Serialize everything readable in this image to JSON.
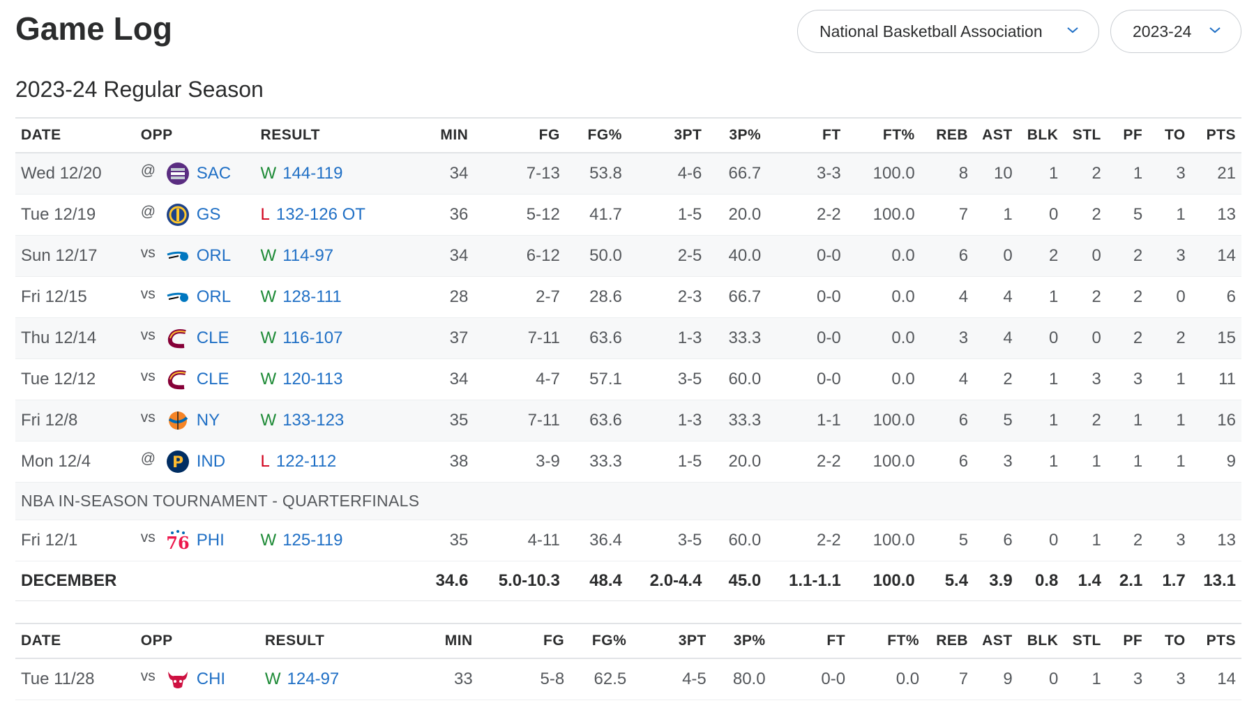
{
  "header": {
    "title": "Game Log",
    "league_select": "National Basketball Association",
    "season_select": "2023-24"
  },
  "section_title": "2023-24 Regular Season",
  "columns": [
    "DATE",
    "OPP",
    "RESULT",
    "MIN",
    "FG",
    "FG%",
    "3PT",
    "3P%",
    "FT",
    "FT%",
    "REB",
    "AST",
    "BLK",
    "STL",
    "PF",
    "TO",
    "PTS"
  ],
  "colors": {
    "win": "#1d8a36",
    "loss": "#d0001b",
    "link": "#1f6fc5"
  },
  "december": {
    "games_a": [
      {
        "date": "Wed 12/20",
        "ha": "@",
        "team": "SAC",
        "logo": "kings-logo-icon",
        "wl": "W",
        "score": "144-119",
        "min": "34",
        "fg": "7-13",
        "fgp": "53.8",
        "tpt": "4-6",
        "tpp": "66.7",
        "ft": "3-3",
        "ftp": "100.0",
        "reb": "8",
        "ast": "10",
        "blk": "1",
        "stl": "2",
        "pf": "1",
        "to": "3",
        "pts": "21"
      },
      {
        "date": "Tue 12/19",
        "ha": "@",
        "team": "GS",
        "logo": "warriors-logo-icon",
        "wl": "L",
        "score": "132-126 OT",
        "min": "36",
        "fg": "5-12",
        "fgp": "41.7",
        "tpt": "1-5",
        "tpp": "20.0",
        "ft": "2-2",
        "ftp": "100.0",
        "reb": "7",
        "ast": "1",
        "blk": "0",
        "stl": "2",
        "pf": "5",
        "to": "1",
        "pts": "13"
      },
      {
        "date": "Sun 12/17",
        "ha": "vs",
        "team": "ORL",
        "logo": "magic-logo-icon",
        "wl": "W",
        "score": "114-97",
        "min": "34",
        "fg": "6-12",
        "fgp": "50.0",
        "tpt": "2-5",
        "tpp": "40.0",
        "ft": "0-0",
        "ftp": "0.0",
        "reb": "6",
        "ast": "0",
        "blk": "2",
        "stl": "0",
        "pf": "2",
        "to": "3",
        "pts": "14"
      },
      {
        "date": "Fri 12/15",
        "ha": "vs",
        "team": "ORL",
        "logo": "magic-logo-icon",
        "wl": "W",
        "score": "128-111",
        "min": "28",
        "fg": "2-7",
        "fgp": "28.6",
        "tpt": "2-3",
        "tpp": "66.7",
        "ft": "0-0",
        "ftp": "0.0",
        "reb": "4",
        "ast": "4",
        "blk": "1",
        "stl": "2",
        "pf": "2",
        "to": "0",
        "pts": "6"
      },
      {
        "date": "Thu 12/14",
        "ha": "vs",
        "team": "CLE",
        "logo": "cavaliers-logo-icon",
        "wl": "W",
        "score": "116-107",
        "min": "37",
        "fg": "7-11",
        "fgp": "63.6",
        "tpt": "1-3",
        "tpp": "33.3",
        "ft": "0-0",
        "ftp": "0.0",
        "reb": "3",
        "ast": "4",
        "blk": "0",
        "stl": "0",
        "pf": "2",
        "to": "2",
        "pts": "15"
      },
      {
        "date": "Tue 12/12",
        "ha": "vs",
        "team": "CLE",
        "logo": "cavaliers-logo-icon",
        "wl": "W",
        "score": "120-113",
        "min": "34",
        "fg": "4-7",
        "fgp": "57.1",
        "tpt": "3-5",
        "tpp": "60.0",
        "ft": "0-0",
        "ftp": "0.0",
        "reb": "4",
        "ast": "2",
        "blk": "1",
        "stl": "3",
        "pf": "3",
        "to": "1",
        "pts": "11"
      },
      {
        "date": "Fri 12/8",
        "ha": "vs",
        "team": "NY",
        "logo": "knicks-logo-icon",
        "wl": "W",
        "score": "133-123",
        "min": "35",
        "fg": "7-11",
        "fgp": "63.6",
        "tpt": "1-3",
        "tpp": "33.3",
        "ft": "1-1",
        "ftp": "100.0",
        "reb": "6",
        "ast": "5",
        "blk": "1",
        "stl": "2",
        "pf": "1",
        "to": "1",
        "pts": "16"
      },
      {
        "date": "Mon 12/4",
        "ha": "@",
        "team": "IND",
        "logo": "pacers-logo-icon",
        "wl": "L",
        "score": "122-112",
        "min": "38",
        "fg": "3-9",
        "fgp": "33.3",
        "tpt": "1-5",
        "tpp": "20.0",
        "ft": "2-2",
        "ftp": "100.0",
        "reb": "6",
        "ast": "3",
        "blk": "1",
        "stl": "1",
        "pf": "1",
        "to": "1",
        "pts": "9"
      }
    ],
    "note": "NBA IN-SEASON TOURNAMENT - QUARTERFINALS",
    "game_b": {
      "date": "Fri 12/1",
      "ha": "vs",
      "team": "PHI",
      "logo": "76ers-logo-icon",
      "wl": "W",
      "score": "125-119",
      "min": "35",
      "fg": "4-11",
      "fgp": "36.4",
      "tpt": "3-5",
      "tpp": "60.0",
      "ft": "2-2",
      "ftp": "100.0",
      "reb": "5",
      "ast": "6",
      "blk": "0",
      "stl": "1",
      "pf": "2",
      "to": "3",
      "pts": "13"
    },
    "total": {
      "label": "DECEMBER",
      "min": "34.6",
      "fg": "5.0-10.3",
      "fgp": "48.4",
      "tpt": "2.0-4.4",
      "tpp": "45.0",
      "ft": "1.1-1.1",
      "ftp": "100.0",
      "reb": "5.4",
      "ast": "3.9",
      "blk": "0.8",
      "stl": "1.4",
      "pf": "2.1",
      "to": "1.7",
      "pts": "13.1"
    }
  },
  "november": {
    "games": [
      {
        "date": "Tue 11/28",
        "ha": "vs",
        "team": "CHI",
        "logo": "bulls-logo-icon",
        "wl": "W",
        "score": "124-97",
        "min": "33",
        "fg": "5-8",
        "fgp": "62.5",
        "tpt": "4-5",
        "tpp": "80.0",
        "ft": "0-0",
        "ftp": "0.0",
        "reb": "7",
        "ast": "9",
        "blk": "0",
        "stl": "1",
        "pf": "3",
        "to": "3",
        "pts": "14"
      }
    ]
  }
}
